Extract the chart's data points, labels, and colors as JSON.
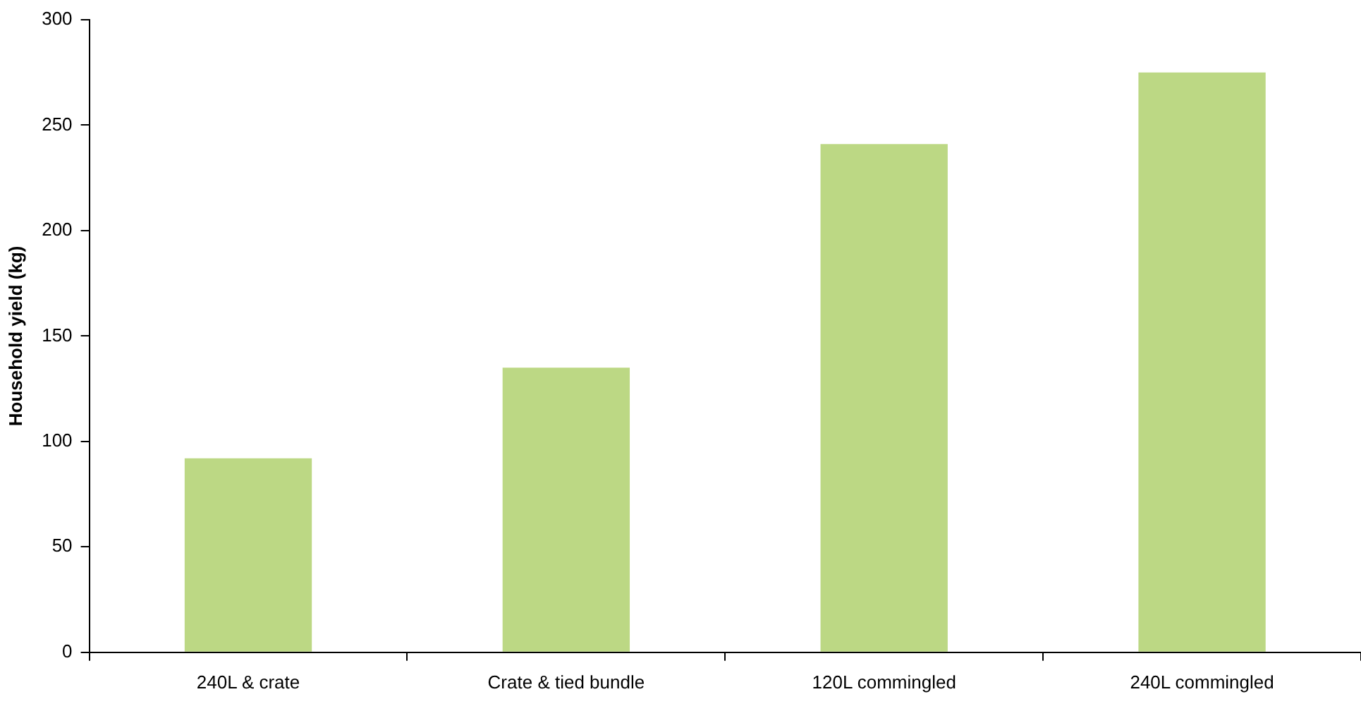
{
  "chart_data": {
    "type": "bar",
    "ylabel": "Household yield (kg)",
    "categories": [
      "240L & crate",
      "Crate & tied bundle",
      "120L commingled",
      "240L commingled"
    ],
    "values": [
      92,
      135,
      241,
      275
    ],
    "color": "#bcd884",
    "ylim": [
      0,
      300
    ],
    "yticks": [
      0,
      50,
      100,
      150,
      200,
      250,
      300
    ],
    "grid": false,
    "legend": false
  }
}
